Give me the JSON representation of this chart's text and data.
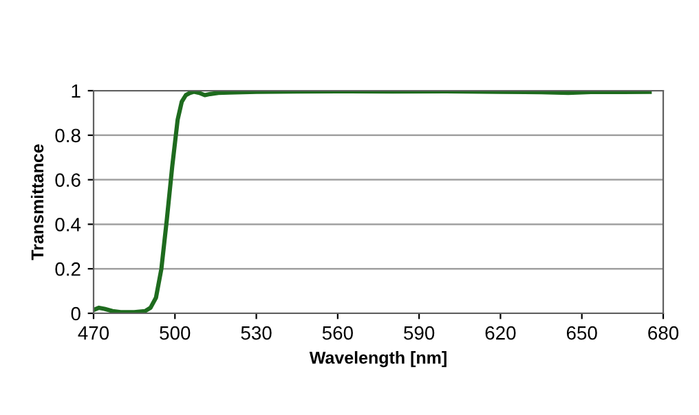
{
  "chart_data": {
    "type": "line",
    "xlabel": "Wavelength [nm]",
    "ylabel": "Transmittance",
    "x": [
      470,
      472,
      474,
      477,
      480,
      485,
      489,
      491,
      493,
      495,
      497,
      499,
      501,
      502.5,
      504,
      505.5,
      507,
      509,
      511,
      513,
      516,
      520,
      525,
      530,
      545,
      560,
      580,
      600,
      620,
      635,
      645,
      655,
      665,
      675
    ],
    "series": [
      {
        "color": "#1e6b1e",
        "values": [
          0.015,
          0.025,
          0.02,
          0.01,
          0.005,
          0.005,
          0.01,
          0.025,
          0.07,
          0.2,
          0.42,
          0.66,
          0.87,
          0.95,
          0.98,
          0.99,
          0.995,
          0.99,
          0.98,
          0.985,
          0.99,
          0.992,
          0.993,
          0.995,
          0.996,
          0.997,
          0.996,
          0.997,
          0.995,
          0.993,
          0.99,
          0.995,
          0.994,
          0.995
        ]
      }
    ],
    "xlim": [
      470,
      680
    ],
    "xticks": [
      470,
      500,
      530,
      560,
      590,
      620,
      650,
      680
    ],
    "ylim": [
      0,
      1
    ],
    "yticks": [
      0,
      0.2,
      0.4,
      0.6,
      0.8,
      1
    ],
    "grid": "y",
    "marker": "none",
    "line_style": "solid",
    "legend": false
  }
}
